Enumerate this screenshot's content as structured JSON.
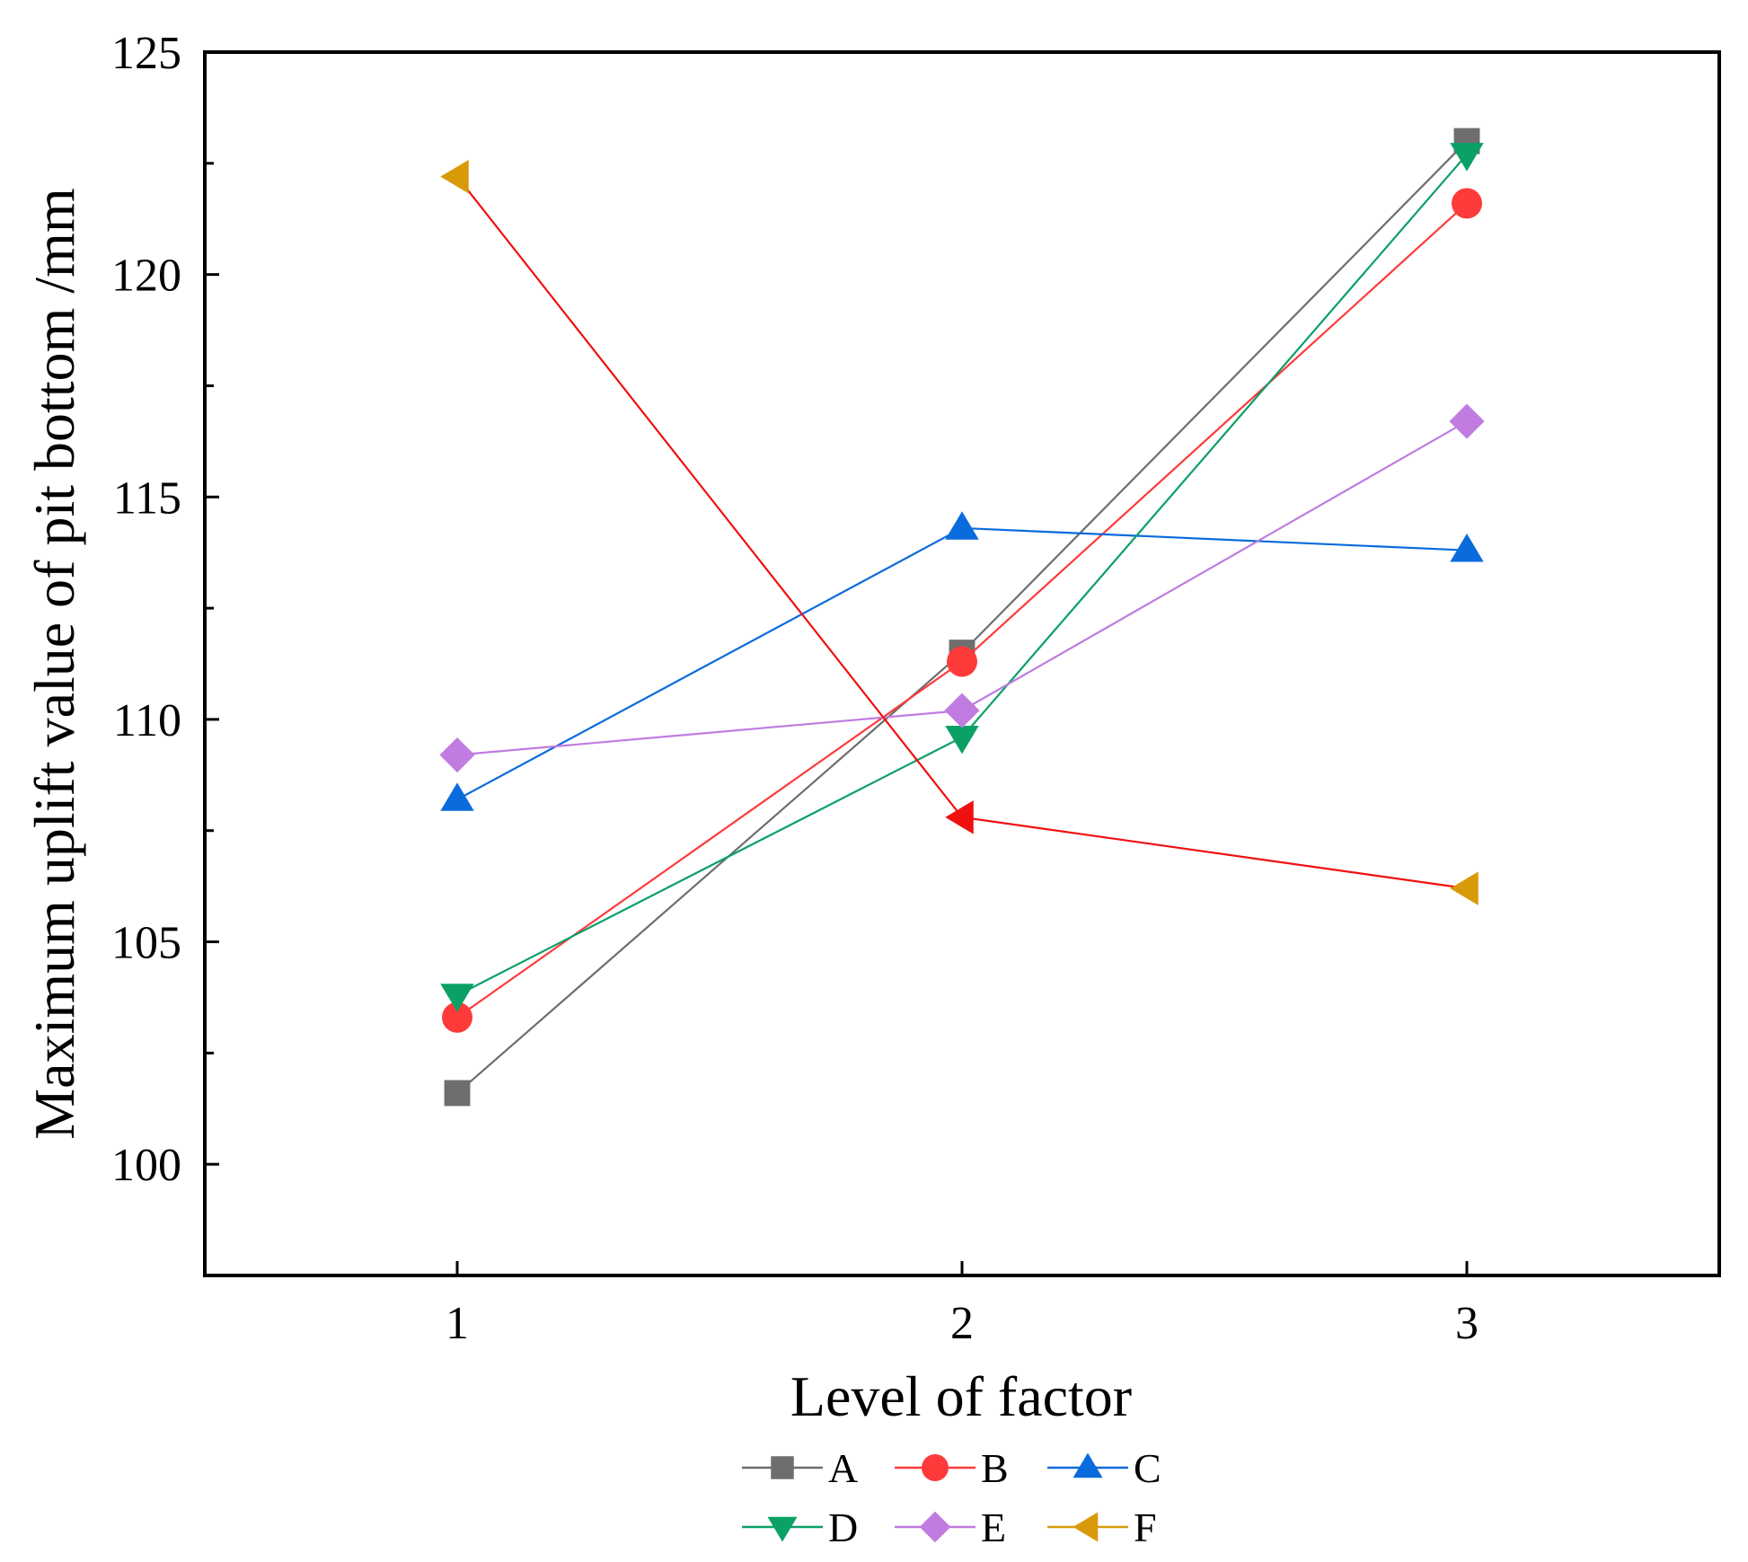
{
  "chart_data": {
    "type": "line",
    "title": "",
    "xlabel": "Level of factor",
    "ylabel": "Maximum uplift value of pit bottom /mm",
    "categories": [
      "1",
      "2",
      "3"
    ],
    "x": [
      1,
      2,
      3
    ],
    "xlim": [
      0.5,
      3.5
    ],
    "ylim": [
      97.5,
      125
    ],
    "yticks": [
      100,
      105,
      110,
      115,
      120,
      125
    ],
    "xticks": [
      1,
      2,
      3
    ],
    "grid": false,
    "legend_position": "bottom",
    "series": [
      {
        "name": "A",
        "marker": "square",
        "color": "#6e6e6e",
        "values": [
          101.6,
          111.5,
          123.0
        ]
      },
      {
        "name": "B",
        "marker": "circle",
        "color": "#fe3a3a",
        "values": [
          103.3,
          111.3,
          121.6
        ]
      },
      {
        "name": "C",
        "marker": "triangle-up",
        "color": "#0a6bdc",
        "values": [
          108.2,
          114.3,
          113.8
        ]
      },
      {
        "name": "D",
        "marker": "triangle-down",
        "color": "#0aa066",
        "values": [
          103.8,
          109.6,
          122.7
        ]
      },
      {
        "name": "E",
        "marker": "diamond",
        "color": "#c07ce0",
        "values": [
          109.2,
          110.2,
          116.7
        ]
      },
      {
        "name": "F",
        "marker": "triangle-left",
        "color": "#d99a0a",
        "line_color": "#f01010",
        "highlight_color": "#f01010",
        "highlight_index": 1,
        "values": [
          122.2,
          107.8,
          106.2
        ]
      }
    ]
  }
}
